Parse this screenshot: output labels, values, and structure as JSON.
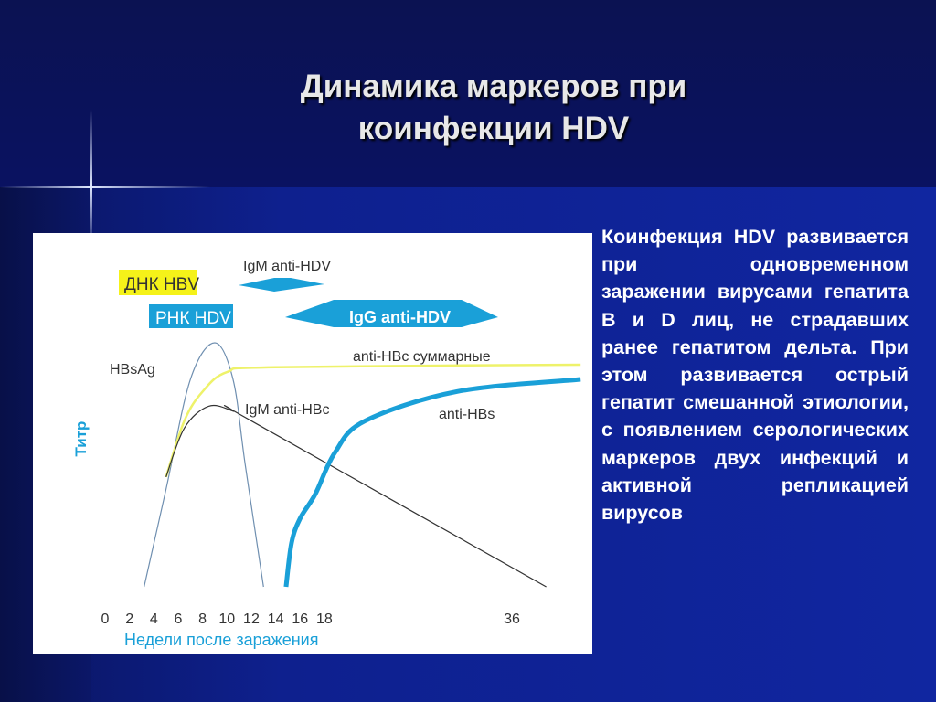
{
  "slide": {
    "title_line1": "Динамика маркеров при",
    "title_line2": "коинфекции HDV",
    "body": "Коинфекция HDV развивается при одновременном заражении вирусами гепатита B и D лиц, не страдавших ранее гепатитом дельта. При этом развивается острый гепатит смешанной этиологии, с появлением серологических маркеров двух инфекций и активной репликацией вирусов"
  },
  "chart_data": {
    "type": "line",
    "xlabel": "Недели после заражения",
    "ylabel": "Титр",
    "x_ticks": [
      "0",
      "2",
      "4",
      "6",
      "8",
      "10",
      "12",
      "14",
      "16",
      "18",
      "36"
    ],
    "labels": {
      "dnk_hbv": "ДНК HBV",
      "rnk_hdv": "РНК HDV",
      "igm_anti_hdv": "IgM anti-HDV",
      "igg_anti_hdv": "IgG anti-HDV"
    },
    "series": [
      {
        "name": "HBsAg",
        "color": "#6f8fb0",
        "points": [
          [
            3.2,
            0
          ],
          [
            5,
            40
          ],
          [
            7,
            85
          ],
          [
            9,
            100
          ],
          [
            10.5,
            85
          ],
          [
            11.5,
            50
          ],
          [
            13,
            0
          ]
        ]
      },
      {
        "name": "anti-HBc суммарные",
        "color": "#eef26a",
        "points": [
          [
            5,
            45
          ],
          [
            6.5,
            68
          ],
          [
            8,
            80
          ],
          [
            10,
            88
          ],
          [
            14,
            90
          ],
          [
            42.6,
            91
          ]
        ]
      },
      {
        "name": "IgM anti-HBc",
        "color": "#333333",
        "points": [
          [
            5,
            45
          ],
          [
            6.5,
            65
          ],
          [
            8.5,
            74
          ],
          [
            10.5,
            72
          ],
          [
            12,
            68
          ],
          [
            39.3,
            0
          ]
        ]
      },
      {
        "name": "anti-HBs",
        "color": "#1aa0d8",
        "points": [
          [
            14.85,
            0
          ],
          [
            15.3,
            18
          ],
          [
            16,
            28
          ],
          [
            17.25,
            38
          ],
          [
            19,
            55
          ],
          [
            21.9,
            68
          ],
          [
            30.7,
            80
          ],
          [
            42.6,
            85
          ]
        ]
      }
    ],
    "colors": {
      "accent": "#1aa0d8",
      "highlight": "#f5f219"
    }
  }
}
